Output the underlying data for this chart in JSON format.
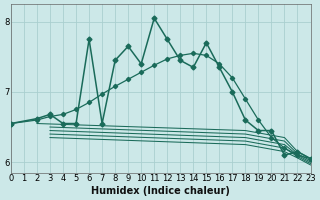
{
  "xlabel": "Humidex (Indice chaleur)",
  "bg_color": "#cce8e8",
  "line_color": "#1a6b5a",
  "grid_color": "#aacfcf",
  "xlim": [
    0,
    23
  ],
  "ylim": [
    5.85,
    8.25
  ],
  "yticks": [
    6,
    7,
    8
  ],
  "xticks": [
    0,
    1,
    2,
    3,
    4,
    5,
    6,
    7,
    8,
    9,
    10,
    11,
    12,
    13,
    14,
    15,
    16,
    17,
    18,
    19,
    20,
    21,
    22,
    23
  ],
  "series_volatile_x": [
    0,
    2,
    3,
    4,
    5,
    6,
    7,
    8,
    9,
    10,
    11,
    12,
    13,
    14,
    15,
    16,
    17,
    18,
    19,
    20,
    21,
    22,
    23
  ],
  "series_volatile_y": [
    6.55,
    6.62,
    6.68,
    6.55,
    6.55,
    7.75,
    6.55,
    7.45,
    7.65,
    7.4,
    8.05,
    7.75,
    7.45,
    7.35,
    7.7,
    7.35,
    7.0,
    6.6,
    6.45,
    6.45,
    6.1,
    6.15,
    6.05
  ],
  "series_trend_x": [
    0,
    2,
    3,
    4,
    5,
    6,
    7,
    8,
    9,
    10,
    11,
    12,
    13,
    14,
    15,
    16,
    17,
    18,
    19,
    20,
    21,
    22,
    23
  ],
  "series_trend_y": [
    6.55,
    6.6,
    6.65,
    6.68,
    6.75,
    6.85,
    6.97,
    7.08,
    7.18,
    7.28,
    7.38,
    7.47,
    7.52,
    7.55,
    7.52,
    7.4,
    7.2,
    6.9,
    6.6,
    6.35,
    6.2,
    6.1,
    6.05
  ],
  "flat_lines": [
    {
      "x": [
        2,
        18,
        21,
        22,
        23
      ],
      "y": [
        6.55,
        6.45,
        6.35,
        6.15,
        6.05
      ]
    },
    {
      "x": [
        3,
        18,
        21,
        22,
        23
      ],
      "y": [
        6.5,
        6.4,
        6.3,
        6.12,
        6.02
      ]
    },
    {
      "x": [
        3,
        18,
        21,
        22,
        23
      ],
      "y": [
        6.45,
        6.35,
        6.25,
        6.1,
        6.0
      ]
    },
    {
      "x": [
        3,
        18,
        21,
        22,
        23
      ],
      "y": [
        6.4,
        6.3,
        6.2,
        6.08,
        5.98
      ]
    },
    {
      "x": [
        3,
        18,
        21,
        22,
        23
      ],
      "y": [
        6.35,
        6.25,
        6.15,
        6.06,
        5.96
      ]
    }
  ]
}
